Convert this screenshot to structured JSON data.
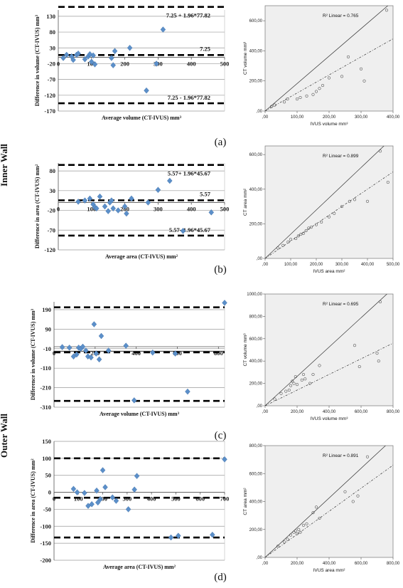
{
  "side_labels": [
    "Inner Wall",
    "Outer Wall"
  ],
  "panels": [
    {
      "label": "(a)",
      "bland_altman": {
        "ylabel": "Difference in volume (CT-IVUS) mm³",
        "xlabel": "Average volume (CT-IVUS) mm³",
        "y_ticks": [
          "130",
          "80",
          "30",
          "-20",
          "-70",
          "-120",
          "-170"
        ],
        "x_ticks": [
          "0",
          "100",
          "200",
          "300",
          "400",
          "500"
        ],
        "annotations": {
          "upper": "7.25 + 1.96*77.82",
          "mean": "7.25",
          "lower": "7.25 - 1.96*77.82"
        }
      },
      "scatter": {
        "r2": "R² Linear = 0.765",
        "ylabel": "CT volume mm³",
        "xlabel": "IVUS volume mm³",
        "y_ticks": [
          "600,00",
          "400,00",
          "200,00",
          ",00"
        ],
        "x_ticks": [
          ",00",
          "100,00",
          "200,00",
          "300,00",
          "400,00"
        ]
      }
    },
    {
      "label": "(b)",
      "bland_altman": {
        "ylabel": "Difference in area (CT-IVUS) mm²",
        "xlabel": "Average area (CT-IVUS) mm²",
        "y_ticks": [
          "80",
          "30",
          "-20",
          "-70",
          "-120"
        ],
        "x_ticks": [
          "0",
          "100",
          "200",
          "300",
          "400",
          "500"
        ],
        "annotations": {
          "upper": "5.57+ 1.96*45.67",
          "mean": "5.57",
          "lower": "5.57- 1.96*45.67"
        }
      },
      "scatter": {
        "r2": "R² Linear = 0.899",
        "ylabel": "CT area mm²",
        "xlabel": "IVUS area mm²",
        "y_ticks": [
          "600,00",
          "400,00",
          "200,00",
          ",00"
        ],
        "x_ticks": [
          ",00",
          "100,00",
          "200,00",
          "300,00",
          "400,00",
          "500,00"
        ]
      }
    },
    {
      "label": "(c)",
      "bland_altman": {
        "ylabel": "Difference in volume (CT-IVUS) mm³",
        "xlabel": "Average volume (CT-IVUS) mm³",
        "y_ticks": [
          "190",
          "90",
          "-10",
          "-110",
          "-210",
          "-310"
        ],
        "x_ticks": [
          "0",
          "200",
          "400",
          "600",
          "800"
        ],
        "annotations": {}
      },
      "scatter": {
        "r2": "R² Linear = 0.695",
        "ylabel": "CT volume mm³",
        "xlabel": "IVUS volume mm³",
        "y_ticks": [
          "1000,00",
          "800,00",
          "600,00",
          "400,00",
          "200,00",
          ",00"
        ],
        "x_ticks": [
          ",00",
          "200,00",
          "400,00",
          "600,00",
          "800,00"
        ]
      }
    },
    {
      "label": "(d)",
      "bland_altman": {
        "ylabel": "Difference in area (CT-IVUS) mm²",
        "xlabel": "Average area (CT-IVUS) mm²",
        "y_ticks": [
          "150",
          "100",
          "50",
          "0",
          "-50",
          "-100",
          "-150",
          "-200"
        ],
        "x_ticks": [
          "0",
          "100",
          "200",
          "300",
          "400",
          "500",
          "600",
          "700"
        ],
        "annotations": {}
      },
      "scatter": {
        "r2": "R² Linear = 0.891",
        "ylabel": "CT area mm²",
        "xlabel": "IVUS area mm²",
        "y_ticks": [
          "800,00",
          "600,00",
          "400,00",
          "200,00",
          ",00"
        ],
        "x_ticks": [
          ",00",
          "200,00",
          "400,00",
          "600,00",
          "800,00"
        ]
      }
    }
  ],
  "chart_data": [
    {
      "type": "scatter",
      "panel": "(a) Bland-Altman",
      "xlim": [
        0,
        500
      ],
      "ylim": [
        -170,
        150
      ],
      "hlines": [
        {
          "y": 159.8,
          "style": "dashed"
        },
        {
          "y": 7.25,
          "style": "dashed"
        },
        {
          "y": -145.3,
          "style": "dashed"
        }
      ],
      "points": [
        [
          15,
          -2
        ],
        [
          25,
          8
        ],
        [
          40,
          3
        ],
        [
          45,
          -8
        ],
        [
          55,
          8
        ],
        [
          60,
          12
        ],
        [
          80,
          -6
        ],
        [
          90,
          3
        ],
        [
          95,
          10
        ],
        [
          100,
          -14
        ],
        [
          105,
          6
        ],
        [
          110,
          -22
        ],
        [
          160,
          -2
        ],
        [
          165,
          -25
        ],
        [
          170,
          20
        ],
        [
          215,
          30
        ],
        [
          265,
          -105
        ],
        [
          295,
          -20
        ],
        [
          315,
          88
        ]
      ]
    },
    {
      "type": "scatter",
      "panel": "(a) regression",
      "xlim": [
        0,
        400
      ],
      "ylim": [
        0,
        700
      ],
      "lines": [
        {
          "style": "solid",
          "from": [
            0,
            0
          ],
          "to": [
            400,
            730
          ]
        },
        {
          "style": "dashdot",
          "from": [
            0,
            0
          ],
          "to": [
            400,
            480
          ]
        }
      ],
      "points": [
        [
          20,
          30
        ],
        [
          30,
          40
        ],
        [
          60,
          60
        ],
        [
          70,
          80
        ],
        [
          100,
          80
        ],
        [
          110,
          90
        ],
        [
          130,
          100
        ],
        [
          150,
          110
        ],
        [
          160,
          130
        ],
        [
          170,
          150
        ],
        [
          180,
          170
        ],
        [
          200,
          220
        ],
        [
          240,
          230
        ],
        [
          260,
          360
        ],
        [
          300,
          280
        ],
        [
          310,
          200
        ],
        [
          380,
          670
        ]
      ]
    },
    {
      "type": "scatter",
      "panel": "(b) Bland-Altman",
      "xlim": [
        0,
        500
      ],
      "ylim": [
        -120,
        100
      ],
      "hlines": [
        {
          "y": 95.1,
          "style": "dashed"
        },
        {
          "y": 5.57,
          "style": "dashed"
        },
        {
          "y": -83.9,
          "style": "dashed"
        }
      ],
      "points": [
        [
          60,
          2
        ],
        [
          80,
          5
        ],
        [
          95,
          10
        ],
        [
          105,
          -5
        ],
        [
          110,
          -12
        ],
        [
          115,
          -15
        ],
        [
          125,
          15
        ],
        [
          140,
          -10
        ],
        [
          150,
          -22
        ],
        [
          155,
          0
        ],
        [
          160,
          5
        ],
        [
          165,
          -15
        ],
        [
          180,
          -20
        ],
        [
          200,
          -10
        ],
        [
          205,
          -28
        ],
        [
          220,
          10
        ],
        [
          270,
          0
        ],
        [
          300,
          32
        ],
        [
          335,
          55
        ],
        [
          375,
          -72
        ],
        [
          460,
          -25
        ]
      ]
    },
    {
      "type": "scatter",
      "panel": "(b) regression",
      "xlim": [
        0,
        500
      ],
      "ylim": [
        0,
        650
      ],
      "lines": [
        {
          "style": "solid",
          "from": [
            0,
            0
          ],
          "to": [
            500,
            700
          ]
        },
        {
          "style": "dashdot",
          "from": [
            0,
            0
          ],
          "to": [
            500,
            500
          ]
        }
      ],
      "points": [
        [
          50,
          60
        ],
        [
          70,
          75
        ],
        [
          90,
          95
        ],
        [
          100,
          110
        ],
        [
          120,
          115
        ],
        [
          130,
          130
        ],
        [
          140,
          140
        ],
        [
          150,
          145
        ],
        [
          160,
          160
        ],
        [
          170,
          175
        ],
        [
          180,
          180
        ],
        [
          200,
          195
        ],
        [
          220,
          210
        ],
        [
          250,
          240
        ],
        [
          270,
          260
        ],
        [
          300,
          300
        ],
        [
          330,
          330
        ],
        [
          350,
          340
        ],
        [
          400,
          330
        ],
        [
          450,
          620
        ],
        [
          480,
          440
        ]
      ]
    },
    {
      "type": "scatter",
      "panel": "(c) Bland-Altman",
      "xlim": [
        0,
        830
      ],
      "ylim": [
        -310,
        230
      ],
      "hlines": [
        {
          "y": 202,
          "style": "dashed"
        },
        {
          "y": -23,
          "style": "solid"
        },
        {
          "y": -29,
          "style": "dashed"
        },
        {
          "y": -278,
          "style": "dashed"
        }
      ],
      "points": [
        [
          40,
          -2
        ],
        [
          75,
          -5
        ],
        [
          95,
          -50
        ],
        [
          110,
          -40
        ],
        [
          120,
          -5
        ],
        [
          130,
          -10
        ],
        [
          140,
          0
        ],
        [
          155,
          -20
        ],
        [
          165,
          -50
        ],
        [
          180,
          -55
        ],
        [
          195,
          115
        ],
        [
          205,
          -35
        ],
        [
          220,
          -65
        ],
        [
          230,
          55
        ],
        [
          265,
          -20
        ],
        [
          350,
          5
        ],
        [
          390,
          -275
        ],
        [
          480,
          -30
        ],
        [
          590,
          -35
        ],
        [
          650,
          -230
        ],
        [
          830,
          225
        ]
      ]
    },
    {
      "type": "scatter",
      "panel": "(c) regression",
      "xlim": [
        0,
        800
      ],
      "ylim": [
        0,
        1000
      ],
      "lines": [
        {
          "style": "solid",
          "from": [
            0,
            0
          ],
          "to": [
            800,
            1050
          ]
        },
        {
          "style": "dashdot",
          "from": [
            0,
            0
          ],
          "to": [
            800,
            560
          ]
        }
      ],
      "points": [
        [
          60,
          60
        ],
        [
          100,
          110
        ],
        [
          130,
          130
        ],
        [
          150,
          140
        ],
        [
          160,
          180
        ],
        [
          170,
          220
        ],
        [
          180,
          200
        ],
        [
          190,
          260
        ],
        [
          200,
          190
        ],
        [
          230,
          230
        ],
        [
          240,
          280
        ],
        [
          250,
          240
        ],
        [
          280,
          200
        ],
        [
          300,
          280
        ],
        [
          340,
          360
        ],
        [
          560,
          540
        ],
        [
          590,
          350
        ],
        [
          700,
          470
        ],
        [
          710,
          400
        ],
        [
          720,
          930
        ]
      ]
    },
    {
      "type": "scatter",
      "panel": "(d) Bland-Altman",
      "xlim": [
        0,
        700
      ],
      "ylim": [
        -200,
        150
      ],
      "hlines": [
        {
          "y": 100,
          "style": "dashed"
        },
        {
          "y": -16,
          "style": "dashed"
        },
        {
          "y": -133,
          "style": "dashed"
        }
      ],
      "points": [
        [
          80,
          10
        ],
        [
          95,
          0
        ],
        [
          125,
          -2
        ],
        [
          140,
          -40
        ],
        [
          155,
          -35
        ],
        [
          175,
          5
        ],
        [
          180,
          -30
        ],
        [
          190,
          -20
        ],
        [
          200,
          65
        ],
        [
          210,
          15
        ],
        [
          240,
          -15
        ],
        [
          255,
          -25
        ],
        [
          305,
          -50
        ],
        [
          330,
          8
        ],
        [
          340,
          48
        ],
        [
          480,
          -133
        ],
        [
          510,
          -128
        ],
        [
          650,
          -125
        ],
        [
          700,
          97
        ]
      ]
    },
    {
      "type": "scatter",
      "panel": "(d) regression",
      "xlim": [
        0,
        800
      ],
      "ylim": [
        0,
        800
      ],
      "lines": [
        {
          "style": "solid",
          "from": [
            0,
            0
          ],
          "to": [
            800,
            850
          ]
        },
        {
          "style": "dashdot",
          "from": [
            0,
            0
          ],
          "to": [
            800,
            660
          ]
        }
      ],
      "points": [
        [
          80,
          80
        ],
        [
          120,
          110
        ],
        [
          140,
          130
        ],
        [
          160,
          160
        ],
        [
          180,
          180
        ],
        [
          190,
          190
        ],
        [
          200,
          170
        ],
        [
          210,
          200
        ],
        [
          220,
          180
        ],
        [
          240,
          230
        ],
        [
          260,
          240
        ],
        [
          300,
          320
        ],
        [
          320,
          360
        ],
        [
          340,
          280
        ],
        [
          500,
          470
        ],
        [
          550,
          400
        ],
        [
          580,
          440
        ],
        [
          640,
          720
        ]
      ]
    }
  ]
}
